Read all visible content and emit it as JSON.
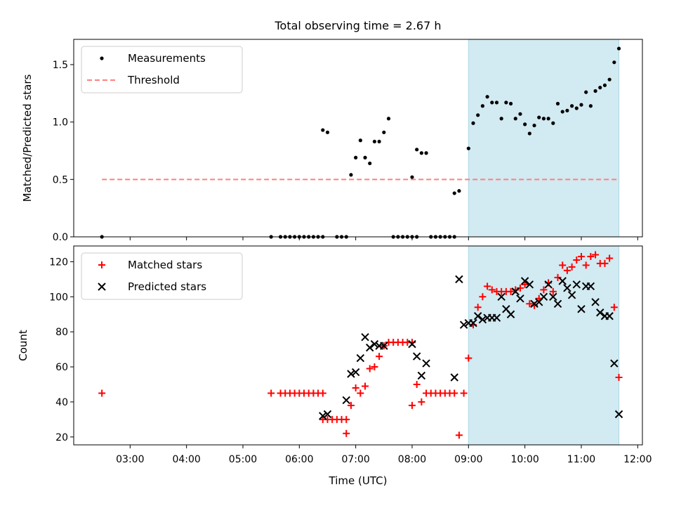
{
  "figure": {
    "title": "Total observing time = 2.67 h"
  },
  "chart_data": [
    {
      "type": "scatter",
      "panel": "top",
      "title": "Total observing time = 2.67 h",
      "xlabel": "",
      "ylabel": "Matched/Predicted stars",
      "ylim": [
        0,
        1.72
      ],
      "xlim": [
        "02:00",
        "12:05"
      ],
      "yticks": [
        0.0,
        0.5,
        1.0,
        1.5
      ],
      "ytick_labels": [
        "0.0",
        "0.5",
        "1.0",
        "1.5"
      ],
      "legend_position": "top-left",
      "shaded_region": {
        "x_start": "09:00",
        "x_end": "11:40",
        "color": "#add8e6"
      },
      "series": [
        {
          "name": "Measurements",
          "kind": "points",
          "color": "#000000",
          "points": [
            [
              "02:30",
              0.0
            ],
            [
              "05:30",
              0.0
            ],
            [
              "05:40",
              0.0
            ],
            [
              "05:45",
              0.0
            ],
            [
              "05:50",
              0.0
            ],
            [
              "05:55",
              0.0
            ],
            [
              "06:00",
              0.0
            ],
            [
              "06:05",
              0.0
            ],
            [
              "06:10",
              0.0
            ],
            [
              "06:15",
              0.0
            ],
            [
              "06:20",
              0.0
            ],
            [
              "06:25",
              0.0
            ],
            [
              "06:40",
              0.0
            ],
            [
              "06:45",
              0.0
            ],
            [
              "06:50",
              0.0
            ],
            [
              "06:25",
              0.93
            ],
            [
              "06:30",
              0.91
            ],
            [
              "06:55",
              0.54
            ],
            [
              "07:00",
              0.69
            ],
            [
              "07:05",
              0.84
            ],
            [
              "07:10",
              0.69
            ],
            [
              "07:15",
              0.64
            ],
            [
              "07:20",
              0.83
            ],
            [
              "07:25",
              0.83
            ],
            [
              "07:30",
              0.91
            ],
            [
              "07:35",
              1.03
            ],
            [
              "07:40",
              0.0
            ],
            [
              "07:45",
              0.0
            ],
            [
              "07:50",
              0.0
            ],
            [
              "07:55",
              0.0
            ],
            [
              "08:00",
              0.0
            ],
            [
              "08:05",
              0.0
            ],
            [
              "08:00",
              0.52
            ],
            [
              "08:05",
              0.76
            ],
            [
              "08:10",
              0.73
            ],
            [
              "08:15",
              0.73
            ],
            [
              "08:20",
              0.0
            ],
            [
              "08:25",
              0.0
            ],
            [
              "08:30",
              0.0
            ],
            [
              "08:35",
              0.0
            ],
            [
              "08:40",
              0.0
            ],
            [
              "08:45",
              0.0
            ],
            [
              "08:45",
              0.38
            ],
            [
              "08:50",
              0.4
            ],
            [
              "09:00",
              0.77
            ],
            [
              "09:05",
              0.99
            ],
            [
              "09:10",
              1.06
            ],
            [
              "09:15",
              1.14
            ],
            [
              "09:20",
              1.22
            ],
            [
              "09:25",
              1.17
            ],
            [
              "09:30",
              1.17
            ],
            [
              "09:35",
              1.03
            ],
            [
              "09:40",
              1.17
            ],
            [
              "09:45",
              1.16
            ],
            [
              "09:50",
              1.03
            ],
            [
              "09:55",
              1.07
            ],
            [
              "10:00",
              0.98
            ],
            [
              "10:05",
              0.9
            ],
            [
              "10:10",
              0.97
            ],
            [
              "10:15",
              1.04
            ],
            [
              "10:20",
              1.03
            ],
            [
              "10:25",
              1.03
            ],
            [
              "10:30",
              0.99
            ],
            [
              "10:35",
              1.16
            ],
            [
              "10:40",
              1.09
            ],
            [
              "10:45",
              1.1
            ],
            [
              "10:50",
              1.14
            ],
            [
              "10:55",
              1.12
            ],
            [
              "11:00",
              1.15
            ],
            [
              "11:05",
              1.26
            ],
            [
              "11:10",
              1.14
            ],
            [
              "11:15",
              1.27
            ],
            [
              "11:20",
              1.3
            ],
            [
              "11:25",
              1.32
            ],
            [
              "11:30",
              1.37
            ],
            [
              "11:35",
              1.52
            ],
            [
              "11:40",
              1.64
            ]
          ]
        },
        {
          "name": "Threshold",
          "kind": "dashed-line",
          "color": "#ff7f7f",
          "points": [
            [
              "02:30",
              0.5
            ],
            [
              "11:40",
              0.5
            ]
          ]
        }
      ]
    },
    {
      "type": "scatter",
      "panel": "bottom",
      "xlabel": "Time (UTC)",
      "ylabel": "Count",
      "ylim": [
        15.5,
        129
      ],
      "xlim": [
        "02:00",
        "12:05"
      ],
      "yticks": [
        20,
        40,
        60,
        80,
        100,
        120
      ],
      "ytick_labels": [
        "20",
        "40",
        "60",
        "80",
        "100",
        "120"
      ],
      "xticks": [
        "03:00",
        "04:00",
        "05:00",
        "06:00",
        "07:00",
        "08:00",
        "09:00",
        "10:00",
        "11:00",
        "12:00"
      ],
      "xtick_labels": [
        "03:00",
        "04:00",
        "05:00",
        "06:00",
        "07:00",
        "08:00",
        "09:00",
        "10:00",
        "11:00",
        "12:00"
      ],
      "legend_position": "top-left",
      "shaded_region": {
        "x_start": "09:00",
        "x_end": "11:40",
        "color": "#add8e6"
      },
      "series": [
        {
          "name": "Matched stars",
          "marker": "plus",
          "color": "#ff0000",
          "points": [
            [
              "02:30",
              45
            ],
            [
              "05:30",
              45
            ],
            [
              "05:40",
              45
            ],
            [
              "05:45",
              45
            ],
            [
              "05:50",
              45
            ],
            [
              "05:55",
              45
            ],
            [
              "06:00",
              45
            ],
            [
              "06:05",
              45
            ],
            [
              "06:10",
              45
            ],
            [
              "06:15",
              45
            ],
            [
              "06:20",
              45
            ],
            [
              "06:25",
              45
            ],
            [
              "06:25",
              30
            ],
            [
              "06:30",
              30
            ],
            [
              "06:35",
              30
            ],
            [
              "06:40",
              30
            ],
            [
              "06:45",
              30
            ],
            [
              "06:50",
              30
            ],
            [
              "06:50",
              22
            ],
            [
              "06:55",
              38
            ],
            [
              "07:00",
              48
            ],
            [
              "07:05",
              45
            ],
            [
              "07:10",
              49
            ],
            [
              "07:15",
              59
            ],
            [
              "07:20",
              60
            ],
            [
              "07:25",
              66
            ],
            [
              "07:30",
              72
            ],
            [
              "07:35",
              74
            ],
            [
              "07:40",
              74
            ],
            [
              "07:45",
              74
            ],
            [
              "07:50",
              74
            ],
            [
              "07:55",
              74
            ],
            [
              "08:00",
              74
            ],
            [
              "08:00",
              38
            ],
            [
              "08:05",
              50
            ],
            [
              "08:10",
              40
            ],
            [
              "08:15",
              45
            ],
            [
              "08:20",
              45
            ],
            [
              "08:25",
              45
            ],
            [
              "08:30",
              45
            ],
            [
              "08:35",
              45
            ],
            [
              "08:40",
              45
            ],
            [
              "08:45",
              45
            ],
            [
              "08:50",
              21
            ],
            [
              "08:55",
              45
            ],
            [
              "09:00",
              65
            ],
            [
              "09:05",
              84
            ],
            [
              "09:10",
              94
            ],
            [
              "09:15",
              100
            ],
            [
              "09:20",
              106
            ],
            [
              "09:25",
              104
            ],
            [
              "09:30",
              103
            ],
            [
              "09:35",
              103
            ],
            [
              "09:40",
              103
            ],
            [
              "09:45",
              103
            ],
            [
              "09:50",
              104
            ],
            [
              "09:55",
              105
            ],
            [
              "10:00",
              107
            ],
            [
              "10:05",
              96
            ],
            [
              "10:10",
              95
            ],
            [
              "10:15",
              99
            ],
            [
              "10:20",
              104
            ],
            [
              "10:25",
              108
            ],
            [
              "10:30",
              103
            ],
            [
              "10:35",
              111
            ],
            [
              "10:40",
              118
            ],
            [
              "10:45",
              115
            ],
            [
              "10:50",
              117
            ],
            [
              "10:55",
              121
            ],
            [
              "11:00",
              123
            ],
            [
              "11:05",
              118
            ],
            [
              "11:10",
              123
            ],
            [
              "11:15",
              124
            ],
            [
              "11:20",
              119
            ],
            [
              "11:25",
              119
            ],
            [
              "11:30",
              122
            ],
            [
              "11:35",
              94
            ],
            [
              "11:40",
              54
            ]
          ]
        },
        {
          "name": "Predicted stars",
          "marker": "x",
          "color": "#000000",
          "points": [
            [
              "06:25",
              32
            ],
            [
              "06:30",
              33
            ],
            [
              "06:50",
              41
            ],
            [
              "06:55",
              56
            ],
            [
              "07:00",
              57
            ],
            [
              "07:05",
              65
            ],
            [
              "07:10",
              77
            ],
            [
              "07:15",
              71
            ],
            [
              "07:20",
              73
            ],
            [
              "07:25",
              72
            ],
            [
              "07:30",
              72
            ],
            [
              "08:00",
              73
            ],
            [
              "08:05",
              66
            ],
            [
              "08:10",
              55
            ],
            [
              "08:15",
              62
            ],
            [
              "08:45",
              54
            ],
            [
              "08:50",
              110
            ],
            [
              "08:55",
              84
            ],
            [
              "09:00",
              85
            ],
            [
              "09:05",
              85
            ],
            [
              "09:10",
              89
            ],
            [
              "09:15",
              87
            ],
            [
              "09:20",
              88
            ],
            [
              "09:25",
              88
            ],
            [
              "09:30",
              88
            ],
            [
              "09:35",
              100
            ],
            [
              "09:40",
              93
            ],
            [
              "09:45",
              90
            ],
            [
              "09:50",
              103
            ],
            [
              "09:55",
              99
            ],
            [
              "10:00",
              109
            ],
            [
              "10:05",
              107
            ],
            [
              "10:10",
              96
            ],
            [
              "10:15",
              97
            ],
            [
              "10:20",
              100
            ],
            [
              "10:25",
              107
            ],
            [
              "10:30",
              100
            ],
            [
              "10:35",
              96
            ],
            [
              "10:40",
              109
            ],
            [
              "10:45",
              105
            ],
            [
              "10:50",
              101
            ],
            [
              "10:55",
              107
            ],
            [
              "11:00",
              93
            ],
            [
              "11:05",
              106
            ],
            [
              "11:10",
              106
            ],
            [
              "11:15",
              97
            ],
            [
              "11:20",
              91
            ],
            [
              "11:25",
              89
            ],
            [
              "11:30",
              89
            ],
            [
              "11:35",
              62
            ],
            [
              "11:40",
              33
            ]
          ]
        }
      ]
    }
  ]
}
